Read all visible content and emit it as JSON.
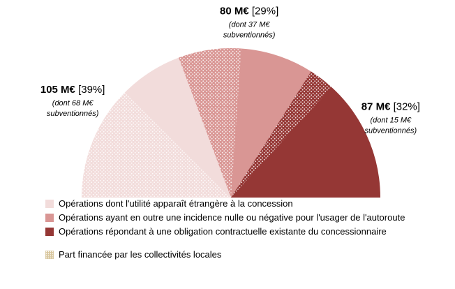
{
  "chart_data": {
    "type": "pie",
    "variant": "half-donut (semicircle)",
    "unit": "M€",
    "slices": [
      {
        "name": "Opérations dont l'utilité apparaît étrangère à la concession",
        "value": 105,
        "pct": 39,
        "subsidized": 68,
        "color": "#f2dcdb"
      },
      {
        "name": "Opérations ayant en outre une incidence nulle ou négative pour l'usager de l'autoroute",
        "value": 80,
        "pct": 29,
        "subsidized": 37,
        "color": "#d99694"
      },
      {
        "name": "Opérations répondant à une obligation contractuelle existante du concessionnaire",
        "value": 87,
        "pct": 32,
        "subsidized": 15,
        "color": "#953735"
      }
    ],
    "labels": [
      {
        "main": "105 M€",
        "pct": "[39%]",
        "sub1": "(dont 68 M€",
        "sub2": "subventionnés)"
      },
      {
        "main": "80 M€",
        "pct": "[29%]",
        "sub1": "(dont 37 M€",
        "sub2": "subventionnés)"
      },
      {
        "main": "87 M€",
        "pct": "[32%]",
        "sub1": "(dont 15 M€",
        "sub2": "subventionnés)"
      }
    ],
    "legend": [
      {
        "label": "Opérations dont l'utilité apparaît étrangère à  la concession",
        "color": "#f2dcdb"
      },
      {
        "label": "Opérations ayant  en outre une incidence  nulle ou négative pour l'usager de l'autoroute",
        "color": "#d99694"
      },
      {
        "label": "Opérations répondant à  une obligation contractuelle existante du concessionnaire",
        "color": "#953735"
      },
      {
        "label": "Part financée par les collectivités locales",
        "pattern": "hatched"
      }
    ]
  }
}
